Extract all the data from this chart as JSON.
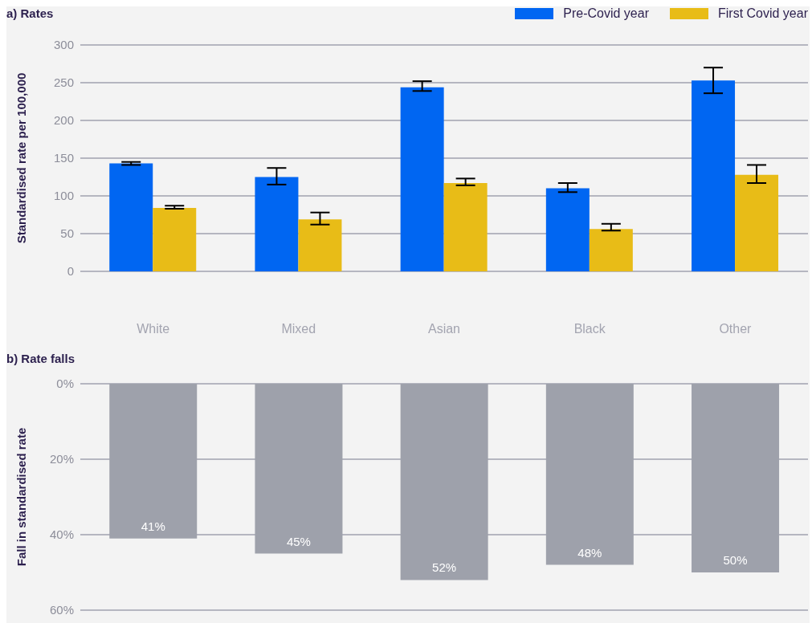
{
  "chart_data": [
    {
      "type": "bar",
      "title": "a) Rates",
      "ylabel": "Standardised rate per 100,000",
      "categories": [
        "White",
        "Mixed",
        "Asian",
        "Black",
        "Other"
      ],
      "series": [
        {
          "name": "Pre-Covid year",
          "color": "#0066f2",
          "values": [
            143,
            125,
            244,
            110,
            253
          ],
          "errors": [
            [
              141,
              145
            ],
            [
              115,
              137
            ],
            [
              239,
              252
            ],
            [
              105,
              117
            ],
            [
              236,
              270
            ]
          ]
        },
        {
          "name": "First Covid year",
          "color": "#e8bc17",
          "values": [
            84,
            69,
            117,
            56,
            128
          ],
          "errors": [
            [
              83,
              87
            ],
            [
              62,
              78
            ],
            [
              114,
              123
            ],
            [
              54,
              63
            ],
            [
              117,
              141
            ]
          ]
        }
      ],
      "ylim": [
        0,
        300
      ],
      "yticks": [
        0,
        50,
        100,
        150,
        200,
        250,
        300
      ],
      "grid": "y",
      "legend": "top right"
    },
    {
      "type": "bar",
      "title": "b) Rate falls",
      "ylabel": "Fall in standardised rate",
      "categories": [
        null,
        null,
        null,
        null,
        null
      ],
      "values": [
        41,
        45,
        52,
        48,
        50
      ],
      "color": "#9ea1ab",
      "value_labels": [
        "41%",
        "45%",
        "52%",
        "48%",
        "50%"
      ],
      "ylim": [
        60,
        0
      ],
      "yticks": [
        {
          "value": 0,
          "label": "0%"
        },
        {
          "value": 20,
          "label": "20%"
        },
        {
          "value": 40,
          "label": "40%"
        },
        {
          "value": 60,
          "label": "60%"
        }
      ],
      "grid": "y",
      "tick_labels": "y"
    }
  ]
}
